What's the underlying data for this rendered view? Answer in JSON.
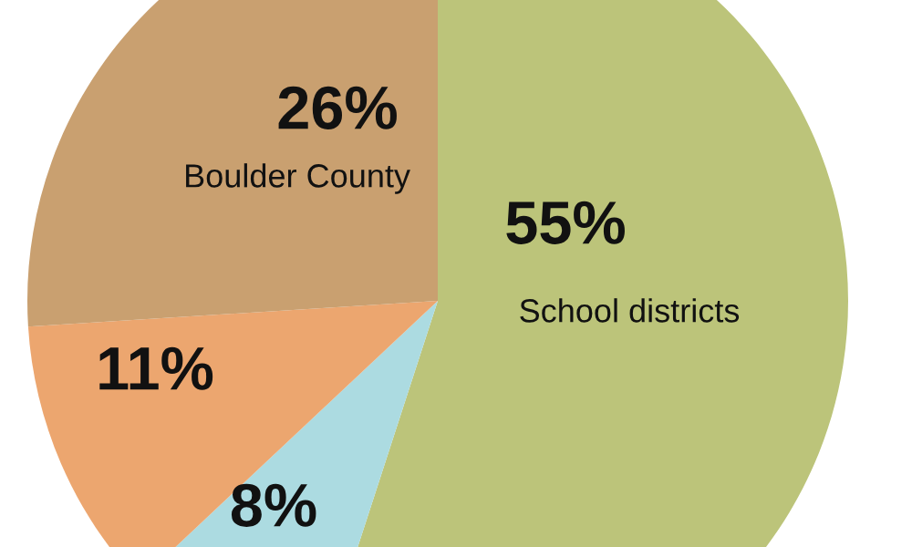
{
  "chart_data": {
    "type": "pie",
    "categories": [
      "School districts",
      null,
      null,
      "Boulder County"
    ],
    "values": [
      55,
      8,
      11,
      26
    ],
    "colors": [
      "#bcc47a",
      "#acdbe1",
      "#eca66f",
      "#c9a070"
    ],
    "value_labels": [
      "55%",
      "8%",
      "11%",
      "26%"
    ]
  }
}
